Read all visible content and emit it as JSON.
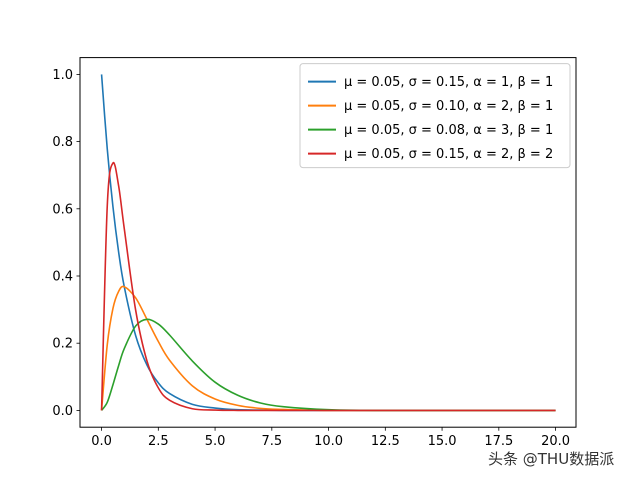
{
  "chart_data": {
    "type": "line",
    "title": "",
    "xlabel": "",
    "ylabel": "",
    "xlim": [
      -0.95,
      20.9
    ],
    "ylim": [
      -0.05,
      1.05
    ],
    "xticks": [
      "0.0",
      "2.5",
      "5.0",
      "7.5",
      "10.0",
      "12.5",
      "15.0",
      "17.5",
      "20.0"
    ],
    "yticks": [
      "0.0",
      "0.2",
      "0.4",
      "0.6",
      "0.8",
      "1.0"
    ],
    "grid": false,
    "legend_position": "upper-right",
    "x": [
      0,
      0.25,
      0.5,
      0.75,
      1,
      1.5,
      2,
      2.5,
      3,
      4,
      5,
      6,
      7,
      8,
      10,
      12,
      15,
      20
    ],
    "series": [
      {
        "name": "μ = 0.05,  σ = 0.15,  α = 1,  β = 1",
        "color": "#1f77b4",
        "values": [
          1.0,
          0.779,
          0.607,
          0.472,
          0.368,
          0.223,
          0.135,
          0.082,
          0.05,
          0.018,
          0.007,
          0.002,
          0.001,
          0.0,
          0.0,
          0.0,
          0.0,
          0.0
        ]
      },
      {
        "name": "μ = 0.05,  σ = 0.10,  α = 2,  β = 1",
        "color": "#ff7f0e",
        "values": [
          0.0,
          0.195,
          0.303,
          0.354,
          0.368,
          0.335,
          0.271,
          0.205,
          0.149,
          0.073,
          0.034,
          0.015,
          0.006,
          0.003,
          0.0,
          0.0,
          0.0,
          0.0
        ]
      },
      {
        "name": "μ = 0.05,  σ = 0.08,  α = 3,  β = 1",
        "color": "#2ca02c",
        "values": [
          0.0,
          0.024,
          0.076,
          0.133,
          0.184,
          0.251,
          0.271,
          0.257,
          0.224,
          0.147,
          0.084,
          0.045,
          0.022,
          0.011,
          0.002,
          0.0,
          0.0,
          0.0
        ]
      },
      {
        "name": "μ = 0.05,  σ = 0.15,  α = 2,  β = 2",
        "color": "#d62728",
        "values": [
          0.0,
          0.607,
          0.736,
          0.669,
          0.541,
          0.299,
          0.147,
          0.067,
          0.03,
          0.005,
          0.001,
          0.0,
          0.0,
          0.0,
          0.0,
          0.0,
          0.0,
          0.0
        ]
      }
    ]
  },
  "watermark": "头条 @THU数据派"
}
